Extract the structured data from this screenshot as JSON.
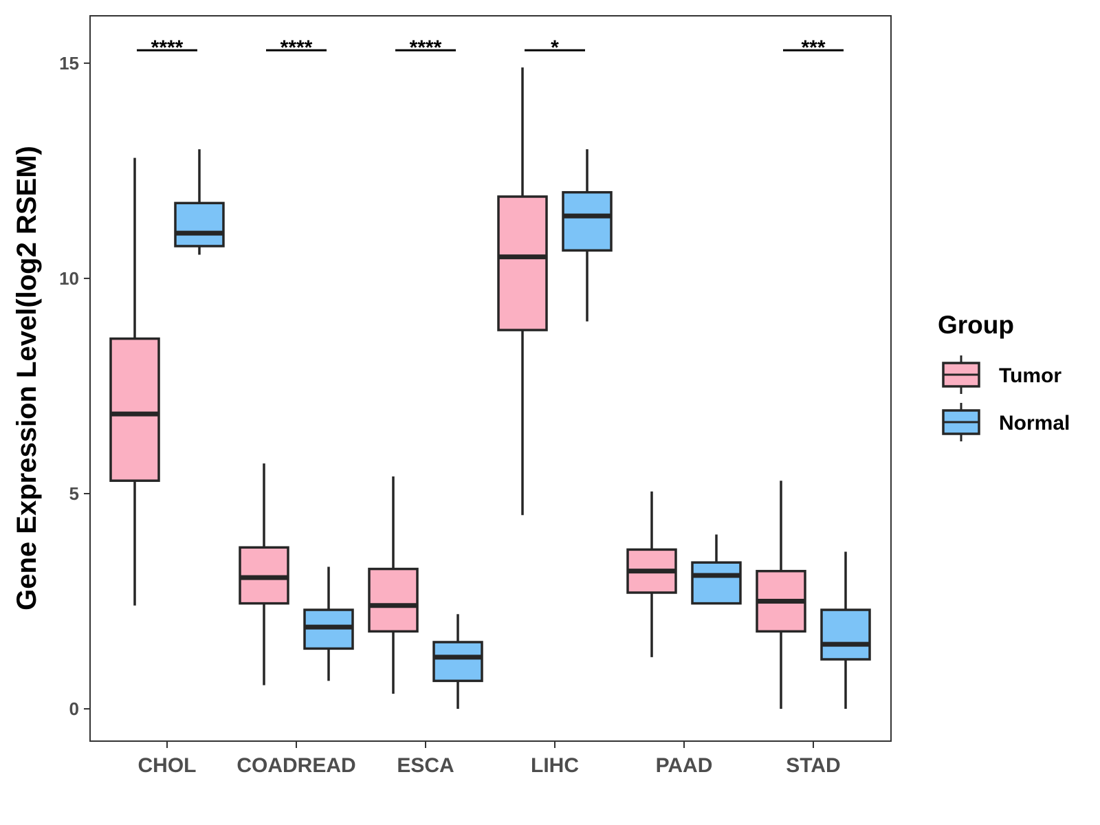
{
  "chart_data": {
    "type": "boxplot",
    "title": "",
    "xlabel": "",
    "ylabel": "Gene Expression Level(log2 RSEM)",
    "ylim": [
      -0.75,
      16.1
    ],
    "yticks": [
      0,
      5,
      10,
      15
    ],
    "ytick_labels": [
      "0",
      "5",
      "10",
      "15"
    ],
    "grid": false,
    "legend": {
      "title": "Group",
      "position": "right"
    },
    "categories": [
      "CHOL",
      "COADREAD",
      "ESCA",
      "LIHC",
      "PAAD",
      "STAD"
    ],
    "series": [
      {
        "name": "Tumor",
        "color": "#FBB0C2",
        "boxes": [
          {
            "min": 2.4,
            "q1": 5.3,
            "median": 6.85,
            "q3": 8.6,
            "max": 12.8
          },
          {
            "min": 0.55,
            "q1": 2.45,
            "median": 3.05,
            "q3": 3.75,
            "max": 5.7
          },
          {
            "min": 0.35,
            "q1": 1.8,
            "median": 2.4,
            "q3": 3.25,
            "max": 5.4
          },
          {
            "min": 4.5,
            "q1": 8.8,
            "median": 10.5,
            "q3": 11.9,
            "max": 14.9
          },
          {
            "min": 1.2,
            "q1": 2.7,
            "median": 3.2,
            "q3": 3.7,
            "max": 5.05
          },
          {
            "min": 0.0,
            "q1": 1.8,
            "median": 2.5,
            "q3": 3.2,
            "max": 5.3
          }
        ]
      },
      {
        "name": "Normal",
        "color": "#7CC3F7",
        "boxes": [
          {
            "min": 10.55,
            "q1": 10.75,
            "median": 11.05,
            "q3": 11.75,
            "max": 13.0
          },
          {
            "min": 0.65,
            "q1": 1.4,
            "median": 1.9,
            "q3": 2.3,
            "max": 3.3
          },
          {
            "min": 0.0,
            "q1": 0.65,
            "median": 1.2,
            "q3": 1.55,
            "max": 2.2
          },
          {
            "min": 9.0,
            "q1": 10.65,
            "median": 11.45,
            "q3": 12.0,
            "max": 13.0
          },
          {
            "min": 2.45,
            "q1": 2.45,
            "median": 3.1,
            "q3": 3.4,
            "max": 4.05
          },
          {
            "min": 0.0,
            "q1": 1.15,
            "median": 1.5,
            "q3": 2.3,
            "max": 3.65
          }
        ]
      }
    ],
    "significance": [
      "****",
      "****",
      "****",
      "*",
      "",
      "***"
    ],
    "significance_y": 15.3
  }
}
